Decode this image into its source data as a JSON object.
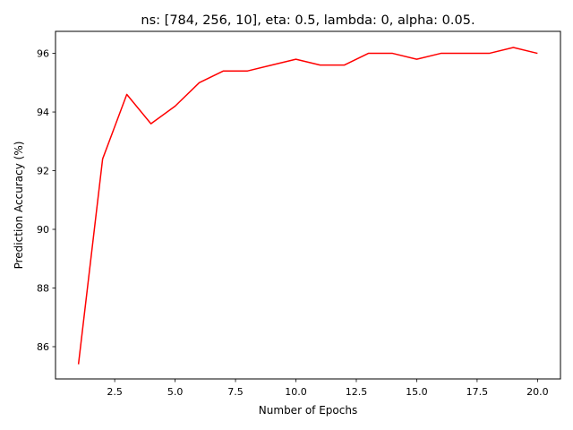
{
  "chart_data": {
    "type": "line",
    "title": "ns: [784, 256, 10], eta: 0.5, lambda: 0, alpha: 0.05.",
    "xlabel": "Number of Epochs",
    "ylabel": "Prediction Accuracy (%)",
    "xlim": [
      0.05,
      20.95
    ],
    "ylim": [
      84.9,
      96.75
    ],
    "xticks": [
      2.5,
      5.0,
      7.5,
      10.0,
      12.5,
      15.0,
      17.5,
      20.0
    ],
    "xtick_labels": [
      "2.5",
      "5.0",
      "7.5",
      "10.0",
      "12.5",
      "15.0",
      "17.5",
      "20.0"
    ],
    "yticks": [
      86,
      88,
      90,
      92,
      94,
      96
    ],
    "ytick_labels": [
      "86",
      "88",
      "90",
      "92",
      "94",
      "96"
    ],
    "grid": false,
    "series": [
      {
        "color": "#ff0000",
        "x": [
          1,
          2,
          3,
          4,
          5,
          6,
          7,
          8,
          9,
          10,
          11,
          12,
          13,
          14,
          15,
          16,
          17,
          18,
          19,
          20
        ],
        "y": [
          85.4,
          92.4,
          94.6,
          93.6,
          94.2,
          95.0,
          95.4,
          95.4,
          95.6,
          95.8,
          95.6,
          95.6,
          96.0,
          96.0,
          95.8,
          96.0,
          96.0,
          96.0,
          96.2,
          96.0
        ]
      }
    ]
  }
}
